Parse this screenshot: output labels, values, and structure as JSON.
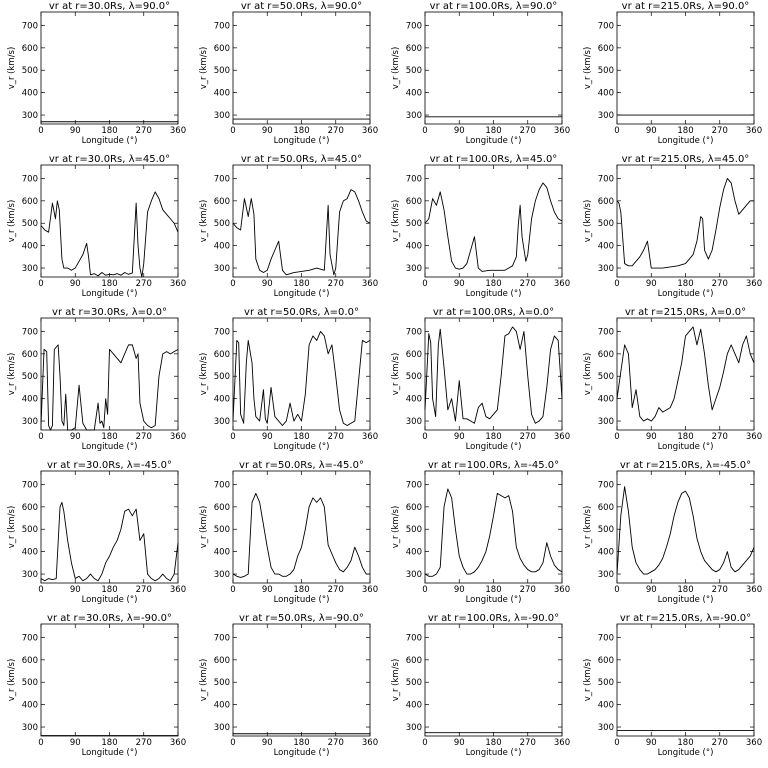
{
  "layout_info": {
    "rows": 5,
    "cols": 4
  },
  "axes": {
    "xlabel": "Longitude (°)",
    "ylabel": "v_r (km/s)",
    "xlim": [
      0,
      360
    ],
    "ylim": [
      260,
      760
    ],
    "xticks": [
      0,
      90,
      180,
      270,
      360
    ],
    "yticks": [
      300,
      400,
      500,
      600,
      700
    ],
    "xtick_labels": [
      "0",
      "90",
      "180",
      "270",
      "360"
    ],
    "ytick_labels": [
      "300",
      "400",
      "500",
      "600",
      "700"
    ]
  },
  "chart_data": [
    {
      "type": "line",
      "title": "vr at r=30.0Rs, λ=90.0°",
      "x": [
        0,
        360
      ],
      "series": [
        {
          "values": [
            270,
            270
          ]
        }
      ]
    },
    {
      "type": "line",
      "title": "vr at r=50.0Rs, λ=90.0°",
      "x": [
        0,
        360
      ],
      "series": [
        {
          "values": [
            282,
            282
          ]
        }
      ]
    },
    {
      "type": "line",
      "title": "vr at r=100.0Rs, λ=90.0°",
      "x": [
        0,
        360
      ],
      "series": [
        {
          "values": [
            292,
            292
          ]
        }
      ]
    },
    {
      "type": "line",
      "title": "vr at r=215.0Rs, λ=90.0°",
      "x": [
        0,
        360
      ],
      "series": [
        {
          "values": [
            300,
            300
          ]
        }
      ]
    },
    {
      "type": "line",
      "title": "vr at r=30.0Rs, λ=45.0°",
      "x": [
        0,
        10,
        20,
        30,
        38,
        43,
        48,
        55,
        60,
        70,
        80,
        90,
        100,
        110,
        120,
        125,
        130,
        140,
        150,
        160,
        170,
        180,
        190,
        200,
        210,
        220,
        230,
        240,
        250,
        255,
        260,
        265,
        270,
        280,
        290,
        300,
        310,
        320,
        330,
        340,
        350,
        360
      ],
      "series": [
        {
          "values": [
            490,
            470,
            460,
            590,
            520,
            600,
            560,
            340,
            300,
            300,
            290,
            300,
            330,
            360,
            410,
            350,
            270,
            275,
            265,
            280,
            268,
            272,
            270,
            275,
            268,
            280,
            272,
            278,
            590,
            400,
            300,
            260,
            320,
            550,
            600,
            640,
            610,
            560,
            540,
            520,
            500,
            460
          ]
        }
      ]
    },
    {
      "type": "line",
      "title": "vr at r=50.0Rs, λ=45.0°",
      "x": [
        0,
        10,
        20,
        30,
        40,
        48,
        55,
        60,
        70,
        80,
        90,
        100,
        110,
        120,
        130,
        140,
        150,
        160,
        180,
        200,
        220,
        240,
        250,
        255,
        265,
        270,
        280,
        290,
        300,
        310,
        320,
        330,
        340,
        350,
        360
      ],
      "series": [
        {
          "values": [
            500,
            480,
            470,
            610,
            530,
            610,
            540,
            340,
            290,
            280,
            290,
            340,
            380,
            420,
            290,
            270,
            275,
            280,
            285,
            290,
            300,
            290,
            580,
            360,
            270,
            300,
            550,
            600,
            610,
            650,
            640,
            600,
            550,
            510,
            500
          ]
        }
      ]
    },
    {
      "type": "line",
      "title": "vr at r=100.0Rs, λ=45.0°",
      "x": [
        0,
        10,
        20,
        30,
        40,
        50,
        60,
        70,
        80,
        90,
        100,
        110,
        120,
        130,
        140,
        150,
        170,
        190,
        210,
        230,
        240,
        245,
        250,
        255,
        265,
        270,
        280,
        290,
        300,
        310,
        320,
        330,
        340,
        350,
        360
      ],
      "series": [
        {
          "values": [
            500,
            520,
            610,
            580,
            640,
            560,
            440,
            330,
            300,
            295,
            300,
            320,
            380,
            440,
            300,
            285,
            290,
            290,
            290,
            310,
            350,
            490,
            580,
            440,
            330,
            360,
            520,
            600,
            650,
            680,
            660,
            600,
            550,
            520,
            510
          ]
        }
      ]
    },
    {
      "type": "line",
      "title": "vr at r=215.0Rs, λ=45.0°",
      "x": [
        0,
        5,
        10,
        20,
        30,
        40,
        50,
        60,
        70,
        80,
        90,
        100,
        120,
        140,
        160,
        180,
        200,
        210,
        220,
        225,
        230,
        240,
        250,
        260,
        270,
        280,
        290,
        300,
        310,
        320,
        330,
        340,
        350,
        360
      ],
      "series": [
        {
          "values": [
            600,
            590,
            550,
            320,
            310,
            310,
            330,
            350,
            380,
            420,
            300,
            300,
            300,
            305,
            310,
            320,
            360,
            420,
            530,
            520,
            380,
            340,
            380,
            470,
            570,
            650,
            700,
            680,
            600,
            540,
            560,
            580,
            600,
            600
          ]
        }
      ]
    },
    {
      "type": "line",
      "title": "vr at r=30.0Rs, λ=0.0°",
      "x": [
        0,
        8,
        15,
        20,
        25,
        30,
        35,
        45,
        50,
        55,
        60,
        65,
        70,
        80,
        90,
        100,
        110,
        120,
        130,
        140,
        150,
        155,
        160,
        165,
        170,
        175,
        180,
        190,
        200,
        210,
        220,
        230,
        240,
        250,
        255,
        260,
        270,
        280,
        290,
        300,
        310,
        320,
        330,
        340,
        350,
        360
      ],
      "series": [
        {
          "values": [
            280,
            620,
            610,
            280,
            260,
            280,
            620,
            640,
            500,
            300,
            280,
            420,
            260,
            260,
            270,
            460,
            290,
            260,
            260,
            260,
            380,
            290,
            300,
            270,
            400,
            330,
            620,
            600,
            580,
            560,
            600,
            640,
            640,
            580,
            600,
            380,
            300,
            280,
            270,
            280,
            500,
            600,
            610,
            600,
            610,
            620
          ]
        }
      ]
    },
    {
      "type": "line",
      "title": "vr at r=50.0Rs, λ=0.0°",
      "x": [
        0,
        10,
        15,
        20,
        28,
        35,
        40,
        50,
        55,
        60,
        70,
        80,
        85,
        90,
        100,
        110,
        120,
        130,
        140,
        150,
        160,
        170,
        180,
        190,
        200,
        210,
        220,
        230,
        240,
        250,
        260,
        270,
        280,
        290,
        300,
        310,
        320,
        330,
        340,
        350,
        360
      ],
      "series": [
        {
          "values": [
            300,
            660,
            650,
            330,
            290,
            560,
            660,
            560,
            400,
            320,
            300,
            440,
            310,
            290,
            450,
            320,
            300,
            280,
            300,
            380,
            300,
            330,
            300,
            420,
            640,
            680,
            660,
            700,
            680,
            600,
            640,
            500,
            350,
            290,
            280,
            290,
            300,
            480,
            660,
            650,
            660
          ]
        }
      ]
    },
    {
      "type": "line",
      "title": "vr at r=100.0Rs, λ=0.0°",
      "x": [
        0,
        10,
        15,
        20,
        28,
        35,
        40,
        50,
        60,
        70,
        80,
        90,
        100,
        110,
        120,
        130,
        140,
        150,
        160,
        170,
        180,
        190,
        200,
        210,
        220,
        230,
        240,
        250,
        260,
        270,
        280,
        290,
        300,
        310,
        320,
        330,
        340,
        350,
        360
      ],
      "series": [
        {
          "values": [
            350,
            690,
            650,
            400,
            320,
            640,
            710,
            540,
            350,
            400,
            300,
            480,
            310,
            310,
            300,
            290,
            360,
            380,
            320,
            310,
            330,
            350,
            500,
            680,
            690,
            720,
            700,
            620,
            700,
            500,
            330,
            290,
            300,
            320,
            450,
            620,
            680,
            660,
            400
          ]
        }
      ]
    },
    {
      "type": "line",
      "title": "vr at r=215.0Rs, λ=0.0°",
      "x": [
        0,
        10,
        20,
        30,
        40,
        50,
        60,
        70,
        80,
        90,
        100,
        110,
        120,
        130,
        140,
        150,
        160,
        170,
        180,
        190,
        200,
        210,
        220,
        230,
        240,
        250,
        260,
        270,
        280,
        290,
        300,
        310,
        320,
        330,
        340,
        350,
        360
      ],
      "series": [
        {
          "values": [
            400,
            520,
            640,
            600,
            360,
            440,
            320,
            300,
            310,
            300,
            320,
            360,
            340,
            350,
            360,
            400,
            480,
            560,
            680,
            700,
            720,
            640,
            710,
            600,
            460,
            350,
            400,
            450,
            520,
            600,
            640,
            600,
            560,
            640,
            680,
            600,
            560
          ]
        }
      ]
    },
    {
      "type": "line",
      "title": "vr at r=30.0Rs, λ=-45.0°",
      "x": [
        0,
        10,
        20,
        30,
        40,
        50,
        55,
        60,
        70,
        80,
        90,
        100,
        110,
        120,
        130,
        140,
        150,
        160,
        170,
        180,
        190,
        200,
        210,
        220,
        230,
        240,
        250,
        260,
        270,
        280,
        290,
        300,
        310,
        320,
        330,
        340,
        350,
        360
      ],
      "series": [
        {
          "values": [
            280,
            270,
            280,
            275,
            280,
            600,
            620,
            580,
            450,
            350,
            280,
            290,
            270,
            280,
            300,
            280,
            270,
            300,
            350,
            380,
            420,
            450,
            500,
            580,
            590,
            560,
            590,
            450,
            480,
            300,
            280,
            270,
            280,
            300,
            280,
            270,
            300,
            440
          ]
        }
      ]
    },
    {
      "type": "line",
      "title": "vr at r=50.0Rs, λ=-45.0°",
      "x": [
        0,
        10,
        20,
        30,
        40,
        50,
        60,
        70,
        80,
        90,
        100,
        110,
        120,
        130,
        140,
        150,
        160,
        170,
        180,
        190,
        200,
        210,
        220,
        230,
        240,
        250,
        260,
        270,
        280,
        290,
        300,
        310,
        320,
        330,
        340,
        350,
        360
      ],
      "series": [
        {
          "values": [
            300,
            290,
            285,
            290,
            300,
            620,
            660,
            620,
            520,
            420,
            330,
            300,
            300,
            290,
            290,
            300,
            320,
            380,
            420,
            500,
            600,
            640,
            620,
            640,
            600,
            430,
            390,
            350,
            320,
            310,
            330,
            360,
            420,
            380,
            330,
            300,
            300
          ]
        }
      ]
    },
    {
      "type": "line",
      "title": "vr at r=100.0Rs, λ=-45.0°",
      "x": [
        0,
        10,
        20,
        30,
        40,
        50,
        60,
        70,
        80,
        90,
        100,
        110,
        120,
        130,
        140,
        150,
        160,
        170,
        180,
        190,
        200,
        210,
        220,
        230,
        240,
        250,
        260,
        270,
        280,
        290,
        300,
        310,
        320,
        330,
        340,
        350,
        360
      ],
      "series": [
        {
          "values": [
            300,
            290,
            290,
            300,
            330,
            600,
            680,
            640,
            500,
            380,
            330,
            300,
            300,
            310,
            330,
            360,
            400,
            470,
            560,
            660,
            650,
            640,
            650,
            580,
            420,
            370,
            340,
            320,
            310,
            310,
            320,
            350,
            440,
            380,
            340,
            320,
            310
          ]
        }
      ]
    },
    {
      "type": "line",
      "title": "vr at r=215.0Rs, λ=-45.0°",
      "x": [
        0,
        10,
        20,
        30,
        40,
        50,
        60,
        70,
        80,
        90,
        100,
        110,
        120,
        130,
        140,
        150,
        160,
        170,
        180,
        190,
        200,
        210,
        220,
        230,
        240,
        250,
        260,
        270,
        280,
        290,
        300,
        310,
        320,
        330,
        340,
        350,
        360
      ],
      "series": [
        {
          "values": [
            300,
            560,
            690,
            580,
            420,
            350,
            320,
            300,
            300,
            310,
            320,
            340,
            370,
            420,
            480,
            560,
            620,
            660,
            670,
            640,
            560,
            460,
            400,
            360,
            340,
            320,
            310,
            320,
            350,
            400,
            330,
            310,
            320,
            340,
            360,
            380,
            420
          ]
        }
      ]
    },
    {
      "type": "line",
      "title": "vr at r=30.0Rs, λ=-90.0°",
      "x": [
        0,
        360
      ],
      "series": [
        {
          "values": [
            262,
            262
          ]
        }
      ]
    },
    {
      "type": "line",
      "title": "vr at r=50.0Rs, λ=-90.0°",
      "x": [
        0,
        360
      ],
      "series": [
        {
          "values": [
            270,
            270
          ]
        }
      ]
    },
    {
      "type": "line",
      "title": "vr at r=100.0Rs, λ=-90.0°",
      "x": [
        0,
        360
      ],
      "series": [
        {
          "values": [
            275,
            275
          ]
        }
      ]
    },
    {
      "type": "line",
      "title": "vr at r=215.0Rs, λ=-90.0°",
      "x": [
        0,
        360
      ],
      "series": [
        {
          "values": [
            285,
            285
          ]
        }
      ]
    }
  ]
}
